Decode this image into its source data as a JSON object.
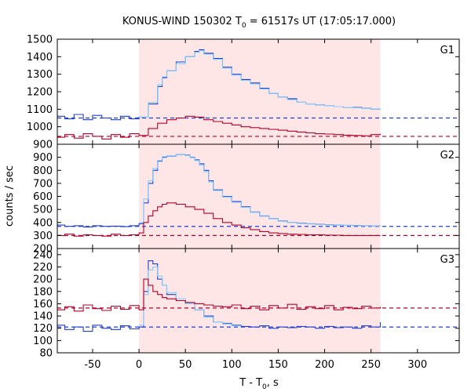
{
  "figure": {
    "title_prefix": "KONUS-WIND 150302 T",
    "title_sub": "0",
    "title_suffix": " = 61517s UT (17:05:17.000)",
    "xlabel_prefix": "T - T",
    "xlabel_sub": "0",
    "xlabel_suffix": ", s",
    "ylabel": "counts / sec"
  },
  "colors": {
    "blue": "#1f3fd1",
    "light_blue": "#7fcfff",
    "red": "#b5002a",
    "shade": "#ffe6e6"
  },
  "chart_data": [
    {
      "type": "line",
      "panel": "G1",
      "label": "G1",
      "xlim": [
        -88,
        345
      ],
      "ylim": [
        900,
        1500
      ],
      "yticks": [
        900,
        1000,
        1100,
        1200,
        1300,
        1400,
        1500
      ],
      "xticks": [
        -50,
        0,
        50,
        100,
        150,
        200,
        250,
        300
      ],
      "shaded_interval": [
        0,
        260
      ],
      "background_levels": [
        {
          "series": "blue",
          "value": 1050
        },
        {
          "series": "red",
          "value": 945
        }
      ],
      "series": [
        {
          "color": "blue",
          "x": [
            -88,
            -80,
            -70,
            -60,
            -50,
            -40,
            -30,
            -20,
            -10,
            0,
            10,
            20,
            25,
            30,
            40,
            50,
            60,
            65,
            70,
            80,
            90,
            100,
            110,
            120,
            130,
            140,
            150,
            160,
            170,
            180,
            190,
            200,
            210,
            220,
            230,
            240,
            250,
            260
          ],
          "values": [
            1060,
            1045,
            1070,
            1040,
            1065,
            1050,
            1040,
            1060,
            1045,
            1055,
            1130,
            1230,
            1280,
            1320,
            1370,
            1400,
            1430,
            1440,
            1420,
            1390,
            1340,
            1300,
            1270,
            1250,
            1220,
            1190,
            1170,
            1160,
            1140,
            1130,
            1125,
            1120,
            1115,
            1110,
            1110,
            1105,
            1100,
            1100
          ]
        },
        {
          "color": "light_blue",
          "x": [
            0,
            10,
            20,
            25,
            30,
            40,
            50,
            60,
            65,
            70,
            80,
            90,
            100,
            110,
            120,
            130,
            140,
            150,
            160,
            170,
            180,
            190,
            200,
            210,
            220,
            230,
            240,
            250,
            260
          ],
          "values": [
            1055,
            1140,
            1240,
            1285,
            1320,
            1360,
            1400,
            1425,
            1435,
            1415,
            1385,
            1335,
            1295,
            1265,
            1245,
            1215,
            1190,
            1170,
            1155,
            1140,
            1130,
            1125,
            1120,
            1115,
            1110,
            1108,
            1104,
            1100,
            1098
          ]
        },
        {
          "color": "red",
          "x": [
            -88,
            -80,
            -70,
            -60,
            -50,
            -40,
            -30,
            -20,
            -10,
            0,
            10,
            20,
            30,
            40,
            50,
            60,
            70,
            80,
            90,
            100,
            110,
            120,
            130,
            140,
            150,
            160,
            170,
            180,
            190,
            200,
            210,
            220,
            230,
            240,
            250,
            260
          ],
          "values": [
            940,
            955,
            935,
            960,
            945,
            930,
            955,
            940,
            960,
            950,
            990,
            1020,
            1040,
            1050,
            1060,
            1055,
            1040,
            1030,
            1020,
            1010,
            1000,
            995,
            990,
            985,
            980,
            975,
            970,
            965,
            960,
            958,
            955,
            952,
            950,
            948,
            955,
            960
          ]
        }
      ]
    },
    {
      "type": "line",
      "panel": "G2",
      "label": "G2",
      "xlim": [
        -88,
        345
      ],
      "ylim": [
        200,
        1000
      ],
      "yticks": [
        200,
        300,
        400,
        500,
        600,
        700,
        800,
        900
      ],
      "xticks": [
        -50,
        0,
        50,
        100,
        150,
        200,
        250,
        300
      ],
      "shaded_interval": [
        0,
        260
      ],
      "background_levels": [
        {
          "series": "blue",
          "value": 370
        },
        {
          "series": "red",
          "value": 300
        }
      ],
      "series": [
        {
          "color": "blue",
          "x": [
            -88,
            -80,
            -70,
            -60,
            -50,
            -40,
            -30,
            -20,
            -10,
            0,
            5,
            10,
            15,
            20,
            25,
            30,
            40,
            50,
            55,
            60,
            65,
            70,
            75,
            80,
            90,
            100,
            110,
            120,
            130,
            140,
            150,
            160,
            170,
            180,
            190,
            200,
            210,
            220,
            230,
            240,
            250,
            260
          ],
          "values": [
            380,
            370,
            375,
            365,
            375,
            370,
            372,
            368,
            375,
            390,
            550,
            700,
            800,
            870,
            900,
            910,
            920,
            915,
            900,
            880,
            850,
            800,
            720,
            650,
            600,
            560,
            520,
            480,
            450,
            430,
            410,
            400,
            395,
            390,
            385,
            382,
            380,
            378,
            376,
            375,
            374,
            373
          ]
        },
        {
          "color": "light_blue",
          "x": [
            0,
            5,
            10,
            15,
            20,
            25,
            30,
            40,
            50,
            55,
            60,
            65,
            70,
            75,
            80,
            90,
            100,
            110,
            120,
            130,
            140,
            150,
            160,
            170,
            180,
            190,
            200,
            210,
            220,
            230,
            240,
            250,
            260
          ],
          "values": [
            400,
            580,
            720,
            815,
            875,
            905,
            912,
            918,
            912,
            898,
            875,
            840,
            790,
            710,
            645,
            595,
            555,
            515,
            478,
            448,
            428,
            408,
            399,
            393,
            388,
            384,
            381,
            379,
            377,
            375,
            374,
            373,
            372
          ]
        },
        {
          "color": "red",
          "x": [
            -88,
            -80,
            -70,
            -60,
            -50,
            -40,
            -30,
            -20,
            -10,
            0,
            5,
            10,
            15,
            20,
            25,
            30,
            40,
            50,
            60,
            70,
            80,
            90,
            100,
            110,
            120,
            130,
            140,
            150,
            160,
            170,
            180,
            190,
            200,
            210,
            220,
            230,
            240,
            250,
            260
          ],
          "values": [
            300,
            310,
            295,
            305,
            300,
            295,
            310,
            300,
            305,
            320,
            400,
            450,
            490,
            520,
            540,
            550,
            540,
            520,
            500,
            470,
            430,
            400,
            380,
            360,
            345,
            330,
            320,
            315,
            310,
            308,
            305,
            305,
            303,
            302,
            300,
            300,
            300,
            300,
            300
          ]
        }
      ]
    },
    {
      "type": "line",
      "panel": "G3",
      "label": "G3",
      "xlim": [
        -88,
        345
      ],
      "ylim": [
        80,
        250
      ],
      "yticks": [
        80,
        100,
        120,
        140,
        160,
        180,
        200,
        220,
        240
      ],
      "xticks": [
        -50,
        0,
        50,
        100,
        150,
        200,
        250,
        300
      ],
      "shaded_interval": [
        0,
        260
      ],
      "background_levels": [
        {
          "series": "blue",
          "value": 122
        },
        {
          "series": "red",
          "value": 153
        }
      ],
      "series": [
        {
          "color": "blue",
          "x": [
            -88,
            -80,
            -70,
            -60,
            -50,
            -40,
            -30,
            -20,
            -10,
            0,
            5,
            10,
            15,
            20,
            25,
            30,
            40,
            50,
            60,
            70,
            80,
            90,
            100,
            110,
            120,
            130,
            140,
            150,
            160,
            170,
            180,
            190,
            200,
            210,
            220,
            230,
            240,
            250,
            260
          ],
          "values": [
            125,
            118,
            122,
            115,
            125,
            120,
            118,
            124,
            119,
            122,
            180,
            230,
            225,
            200,
            190,
            175,
            165,
            160,
            150,
            140,
            130,
            128,
            125,
            123,
            122,
            124,
            120,
            122,
            121,
            123,
            122,
            120,
            123,
            121,
            122,
            120,
            124,
            122,
            130
          ]
        },
        {
          "color": "light_blue",
          "x": [
            0,
            5,
            10,
            15,
            20,
            25,
            30,
            40,
            50,
            60,
            70,
            80,
            90,
            100
          ],
          "values": [
            125,
            175,
            215,
            220,
            205,
            190,
            178,
            168,
            160,
            150,
            138,
            130,
            127,
            124
          ]
        },
        {
          "color": "red",
          "x": [
            -88,
            -80,
            -70,
            -60,
            -50,
            -40,
            -30,
            -20,
            -10,
            0,
            5,
            10,
            15,
            20,
            25,
            30,
            40,
            50,
            60,
            70,
            80,
            90,
            100,
            110,
            120,
            130,
            140,
            150,
            160,
            170,
            180,
            190,
            200,
            210,
            220,
            230,
            240,
            250,
            260
          ],
          "values": [
            150,
            155,
            148,
            158,
            152,
            149,
            156,
            151,
            157,
            150,
            200,
            190,
            180,
            175,
            170,
            168,
            165,
            162,
            160,
            158,
            156,
            155,
            158,
            152,
            156,
            150,
            157,
            153,
            159,
            151,
            155,
            152,
            157,
            150,
            154,
            152,
            156,
            153,
            155
          ]
        }
      ]
    }
  ]
}
